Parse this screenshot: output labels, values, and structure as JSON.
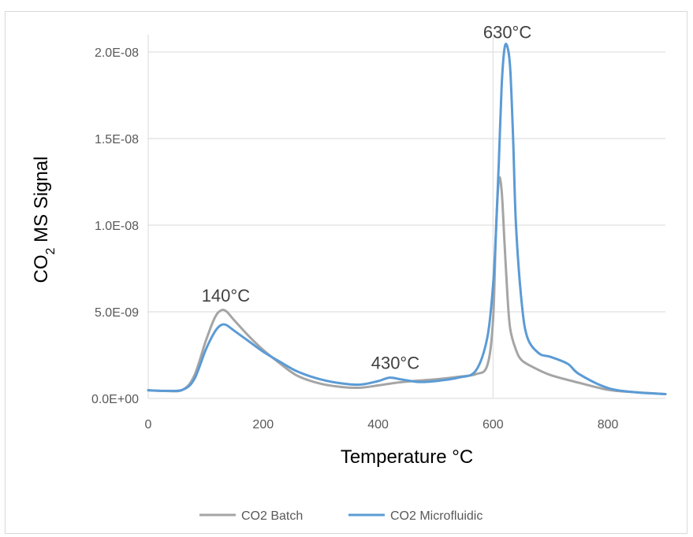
{
  "chart_data": {
    "type": "line",
    "title": "",
    "xlabel": "Temperature °C",
    "ylabel": {
      "prefix": "CO",
      "subscript": "2",
      "suffix": " MS Signal"
    },
    "xlim": [
      0,
      900
    ],
    "ylim": [
      0,
      2.2e-08
    ],
    "x_ticks": [
      0,
      200,
      400,
      600,
      800
    ],
    "x_tick_labels": [
      "0",
      "200",
      "400",
      "600",
      "800"
    ],
    "y_ticks": [
      0,
      5e-09,
      1e-08,
      1.5e-08,
      2e-08
    ],
    "y_tick_labels": [
      "0.0E+00",
      "5.0E-09",
      "1.0E-08",
      "1.5E-08",
      "2.0E-08"
    ],
    "grid": "horizontal",
    "legend_position": "bottom",
    "annotations": [
      {
        "text": "140°C",
        "x": 135,
        "y": 5.6e-09
      },
      {
        "text": "430°C",
        "x": 430,
        "y": 1.7e-09
      },
      {
        "text": "630°C",
        "x": 625,
        "y": 2.08e-08
      }
    ],
    "series": [
      {
        "name": "CO2 Batch",
        "color": "#a5a5a5",
        "x": [
          0,
          30,
          60,
          80,
          100,
          115,
          125,
          135,
          150,
          175,
          200,
          230,
          260,
          300,
          340,
          370,
          400,
          430,
          460,
          500,
          540,
          570,
          590,
          600,
          605,
          610,
          615,
          620,
          625,
          630,
          640,
          650,
          670,
          700,
          750,
          800,
          850,
          900
        ],
        "y": [
          4.7e-10,
          4.3e-10,
          5e-10,
          1.3e-09,
          3.3e-09,
          4.6e-09,
          5.05e-09,
          5.05e-09,
          4.5e-09,
          3.6e-09,
          2.8e-09,
          2e-09,
          1.3e-09,
          8.5e-10,
          6.5e-10,
          6.2e-10,
          7.5e-10,
          9e-10,
          1e-09,
          1.1e-09,
          1.25e-09,
          1.4e-09,
          1.9e-09,
          4.5e-09,
          9.5e-09,
          1.26e-08,
          1.2e-08,
          9e-09,
          6e-09,
          4e-09,
          2.8e-09,
          2.2e-09,
          1.8e-09,
          1.35e-09,
          9e-10,
          5e-10,
          3.5e-10,
          2.5e-10
        ]
      },
      {
        "name": "CO2 Microfluidic",
        "color": "#5b9bd5",
        "x": [
          0,
          30,
          60,
          80,
          100,
          115,
          125,
          135,
          150,
          175,
          200,
          230,
          260,
          300,
          340,
          370,
          400,
          420,
          440,
          470,
          500,
          540,
          570,
          590,
          600,
          605,
          610,
          615,
          620,
          625,
          630,
          635,
          640,
          650,
          660,
          680,
          700,
          730,
          750,
          800,
          850,
          900
        ],
        "y": [
          4.7e-10,
          4.4e-10,
          5e-10,
          1.1e-09,
          2.8e-09,
          3.8e-09,
          4.2e-09,
          4.25e-09,
          3.9e-09,
          3.3e-09,
          2.7e-09,
          2.1e-09,
          1.55e-09,
          1.1e-09,
          8.5e-10,
          8e-10,
          1e-09,
          1.2e-09,
          1.1e-09,
          9.5e-10,
          1e-09,
          1.2e-09,
          1.6e-09,
          3.5e-09,
          6.5e-09,
          9.5e-09,
          1.35e-08,
          1.8e-08,
          2.02e-08,
          2.03e-08,
          1.9e-08,
          1.5e-08,
          1e-08,
          5.5e-09,
          3.5e-09,
          2.6e-09,
          2.4e-09,
          2e-09,
          1.4e-09,
          6e-10,
          3.5e-10,
          2.5e-10
        ]
      }
    ]
  }
}
